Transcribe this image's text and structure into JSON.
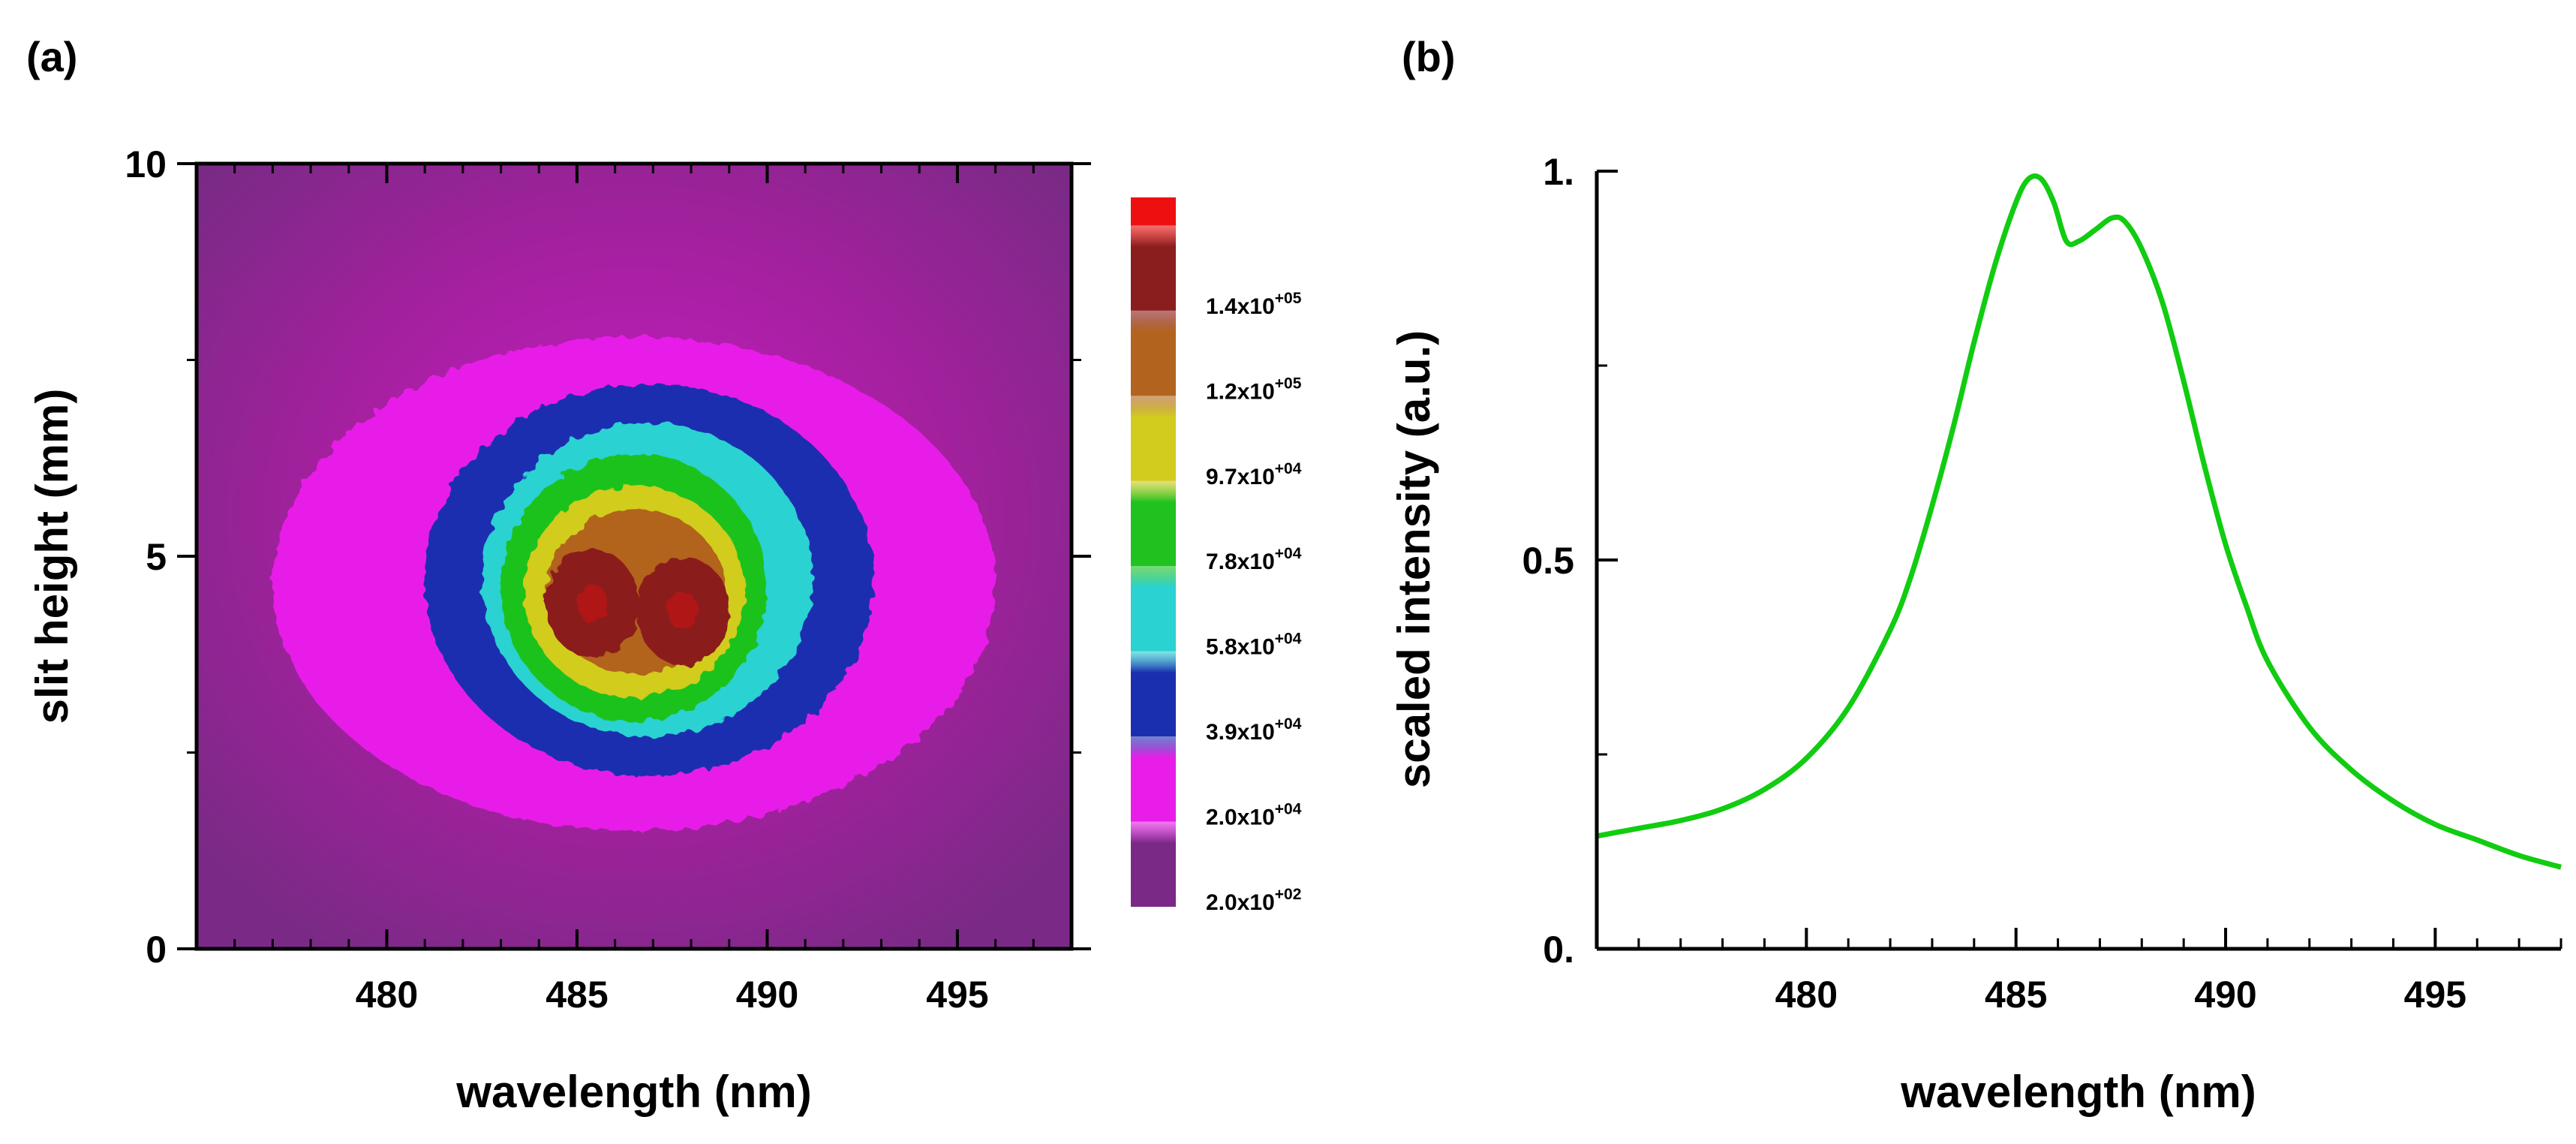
{
  "chart_data": [
    {
      "panel_label": "(a)",
      "type": "heatmap",
      "xlabel": "wavelength (nm)",
      "ylabel": "slit height (mm)",
      "xlim": [
        475,
        498
      ],
      "ylim": [
        0,
        10
      ],
      "x_ticks": [
        480,
        485,
        490,
        495
      ],
      "y_ticks": [
        0,
        5,
        10
      ],
      "center": {
        "x": 486.5,
        "y": 4.4
      },
      "peaks": [
        {
          "x": 485.4,
          "y": 4.4
        },
        {
          "x": 487.8,
          "y": 4.3
        }
      ],
      "contour_levels": [
        {
          "label": "2.0x10",
          "exp": "+02",
          "value": 200,
          "color": "#7a2a86"
        },
        {
          "label": "2.0x10",
          "exp": "+04",
          "value": 20000,
          "color": "#e81ee8"
        },
        {
          "label": "3.9x10",
          "exp": "+04",
          "value": 39000,
          "color": "#1a2fb0"
        },
        {
          "label": "5.8x10",
          "exp": "+04",
          "value": 58000,
          "color": "#2ad2d2"
        },
        {
          "label": "7.8x10",
          "exp": "+04",
          "value": 78000,
          "color": "#1fc21f"
        },
        {
          "label": "9.7x10",
          "exp": "+04",
          "value": 97000,
          "color": "#d2cc1e"
        },
        {
          "label": "1.2x10",
          "exp": "+05",
          "value": 120000,
          "color": "#b2641e"
        },
        {
          "label": "1.4x10",
          "exp": "+05",
          "value": 140000,
          "color": "#8a1e1e"
        }
      ],
      "top_color": "#ee1010",
      "contours": [
        {
          "level": 20000,
          "xr": [
            477.0,
            496.0
          ],
          "yr": [
            1.5,
            7.8
          ]
        },
        {
          "level": 39000,
          "xr": [
            481.0,
            492.8
          ],
          "yr": [
            2.2,
            7.2
          ]
        },
        {
          "level": 58000,
          "xr": [
            482.5,
            491.2
          ],
          "yr": [
            2.7,
            6.7
          ]
        },
        {
          "level": 78000,
          "xr": [
            483.0,
            490.0
          ],
          "yr": [
            2.9,
            6.3
          ]
        },
        {
          "level": 97000,
          "xr": [
            483.6,
            489.4
          ],
          "yr": [
            3.2,
            5.9
          ]
        },
        {
          "level": 120000,
          "xr": [
            484.2,
            488.9
          ],
          "yr": [
            3.5,
            5.6
          ]
        }
      ]
    },
    {
      "panel_label": "(b)",
      "type": "line",
      "xlabel": "wavelength (nm)",
      "ylabel": "scaled intensity (a.u.)",
      "xlim": [
        475,
        498
      ],
      "ylim": [
        0,
        1
      ],
      "x_ticks": [
        480,
        485,
        490,
        495
      ],
      "y_ticks": [
        0,
        0.5,
        1
      ],
      "y_tick_labels": [
        "0.",
        "0.5",
        "1."
      ],
      "series": [
        {
          "name": "scaled intensity",
          "color": "#11cc11",
          "x": [
            475.0,
            476.0,
            477.0,
            478.0,
            479.0,
            480.0,
            481.0,
            482.0,
            482.5,
            483.0,
            483.5,
            484.0,
            484.5,
            485.0,
            485.3,
            485.6,
            485.9,
            486.2,
            486.5,
            486.9,
            487.3,
            487.6,
            488.0,
            488.5,
            489.0,
            489.5,
            490.0,
            490.5,
            491.0,
            492.0,
            493.0,
            494.0,
            495.0,
            496.0,
            497.0,
            498.0
          ],
          "y": [
            0.145,
            0.155,
            0.165,
            0.18,
            0.205,
            0.245,
            0.31,
            0.41,
            0.48,
            0.57,
            0.67,
            0.78,
            0.88,
            0.96,
            0.99,
            0.99,
            0.96,
            0.91,
            0.91,
            0.925,
            0.94,
            0.935,
            0.9,
            0.83,
            0.73,
            0.62,
            0.52,
            0.44,
            0.37,
            0.285,
            0.23,
            0.19,
            0.16,
            0.14,
            0.12,
            0.105
          ]
        }
      ]
    }
  ]
}
